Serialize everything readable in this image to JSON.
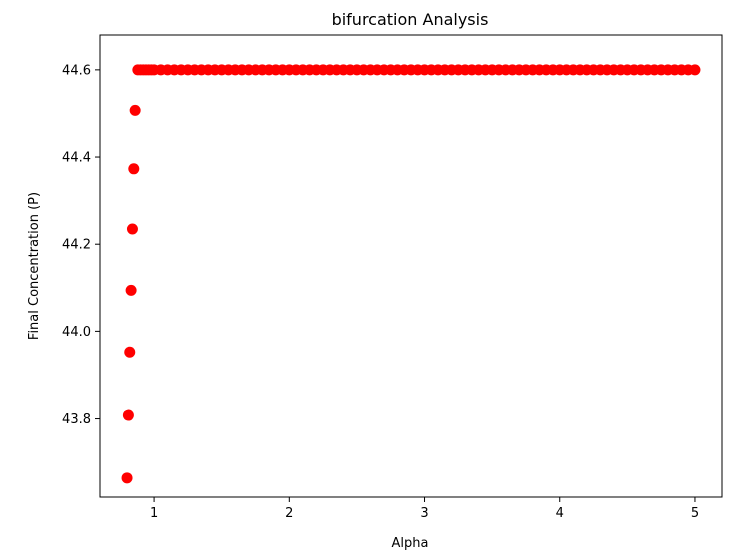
{
  "chart_data": {
    "type": "scatter",
    "title": "bifurcation Analysis",
    "xlabel": "Alpha",
    "ylabel": "Final Concentration (P)",
    "xlim": [
      0.6,
      5.2
    ],
    "ylim": [
      43.62,
      44.68
    ],
    "xticks": [
      1,
      2,
      3,
      4,
      5
    ],
    "yticks": [
      43.8,
      44.0,
      44.2,
      44.4,
      44.6
    ],
    "grid": false,
    "marker_color": "#ff0000",
    "series": [
      {
        "x": [
          0.8,
          0.81,
          0.82,
          0.83,
          0.84,
          0.85,
          0.86,
          0.88,
          0.9,
          0.92,
          0.94,
          0.96,
          0.98,
          1.0,
          1.05,
          1.1,
          1.15,
          1.2,
          1.25,
          1.3,
          1.35,
          1.4,
          1.45,
          1.5,
          1.55,
          1.6,
          1.65,
          1.7,
          1.75,
          1.8,
          1.85,
          1.9,
          1.95,
          2.0,
          2.05,
          2.1,
          2.15,
          2.2,
          2.25,
          2.3,
          2.35,
          2.4,
          2.45,
          2.5,
          2.55,
          2.6,
          2.65,
          2.7,
          2.75,
          2.8,
          2.85,
          2.9,
          2.95,
          3.0,
          3.05,
          3.1,
          3.15,
          3.2,
          3.25,
          3.3,
          3.35,
          3.4,
          3.45,
          3.5,
          3.55,
          3.6,
          3.65,
          3.7,
          3.75,
          3.8,
          3.85,
          3.9,
          3.95,
          4.0,
          4.05,
          4.1,
          4.15,
          4.2,
          4.25,
          4.3,
          4.35,
          4.4,
          4.45,
          4.5,
          4.55,
          4.6,
          4.65,
          4.7,
          4.75,
          4.8,
          4.85,
          4.9,
          4.95,
          5.0
        ],
        "y": [
          43.664,
          43.808,
          43.952,
          44.094,
          44.235,
          44.373,
          44.507,
          44.6,
          44.6,
          44.6,
          44.6,
          44.6,
          44.6,
          44.6,
          44.6,
          44.6,
          44.6,
          44.6,
          44.6,
          44.6,
          44.6,
          44.6,
          44.6,
          44.6,
          44.6,
          44.6,
          44.6,
          44.6,
          44.6,
          44.6,
          44.6,
          44.6,
          44.6,
          44.6,
          44.6,
          44.6,
          44.6,
          44.6,
          44.6,
          44.6,
          44.6,
          44.6,
          44.6,
          44.6,
          44.6,
          44.6,
          44.6,
          44.6,
          44.6,
          44.6,
          44.6,
          44.6,
          44.6,
          44.6,
          44.6,
          44.6,
          44.6,
          44.6,
          44.6,
          44.6,
          44.6,
          44.6,
          44.6,
          44.6,
          44.6,
          44.6,
          44.6,
          44.6,
          44.6,
          44.6,
          44.6,
          44.6,
          44.6,
          44.6,
          44.6,
          44.6,
          44.6,
          44.6,
          44.6,
          44.6,
          44.6,
          44.6,
          44.6,
          44.6,
          44.6,
          44.6,
          44.6,
          44.6,
          44.6,
          44.6,
          44.6,
          44.6,
          44.6,
          44.6
        ]
      }
    ]
  }
}
